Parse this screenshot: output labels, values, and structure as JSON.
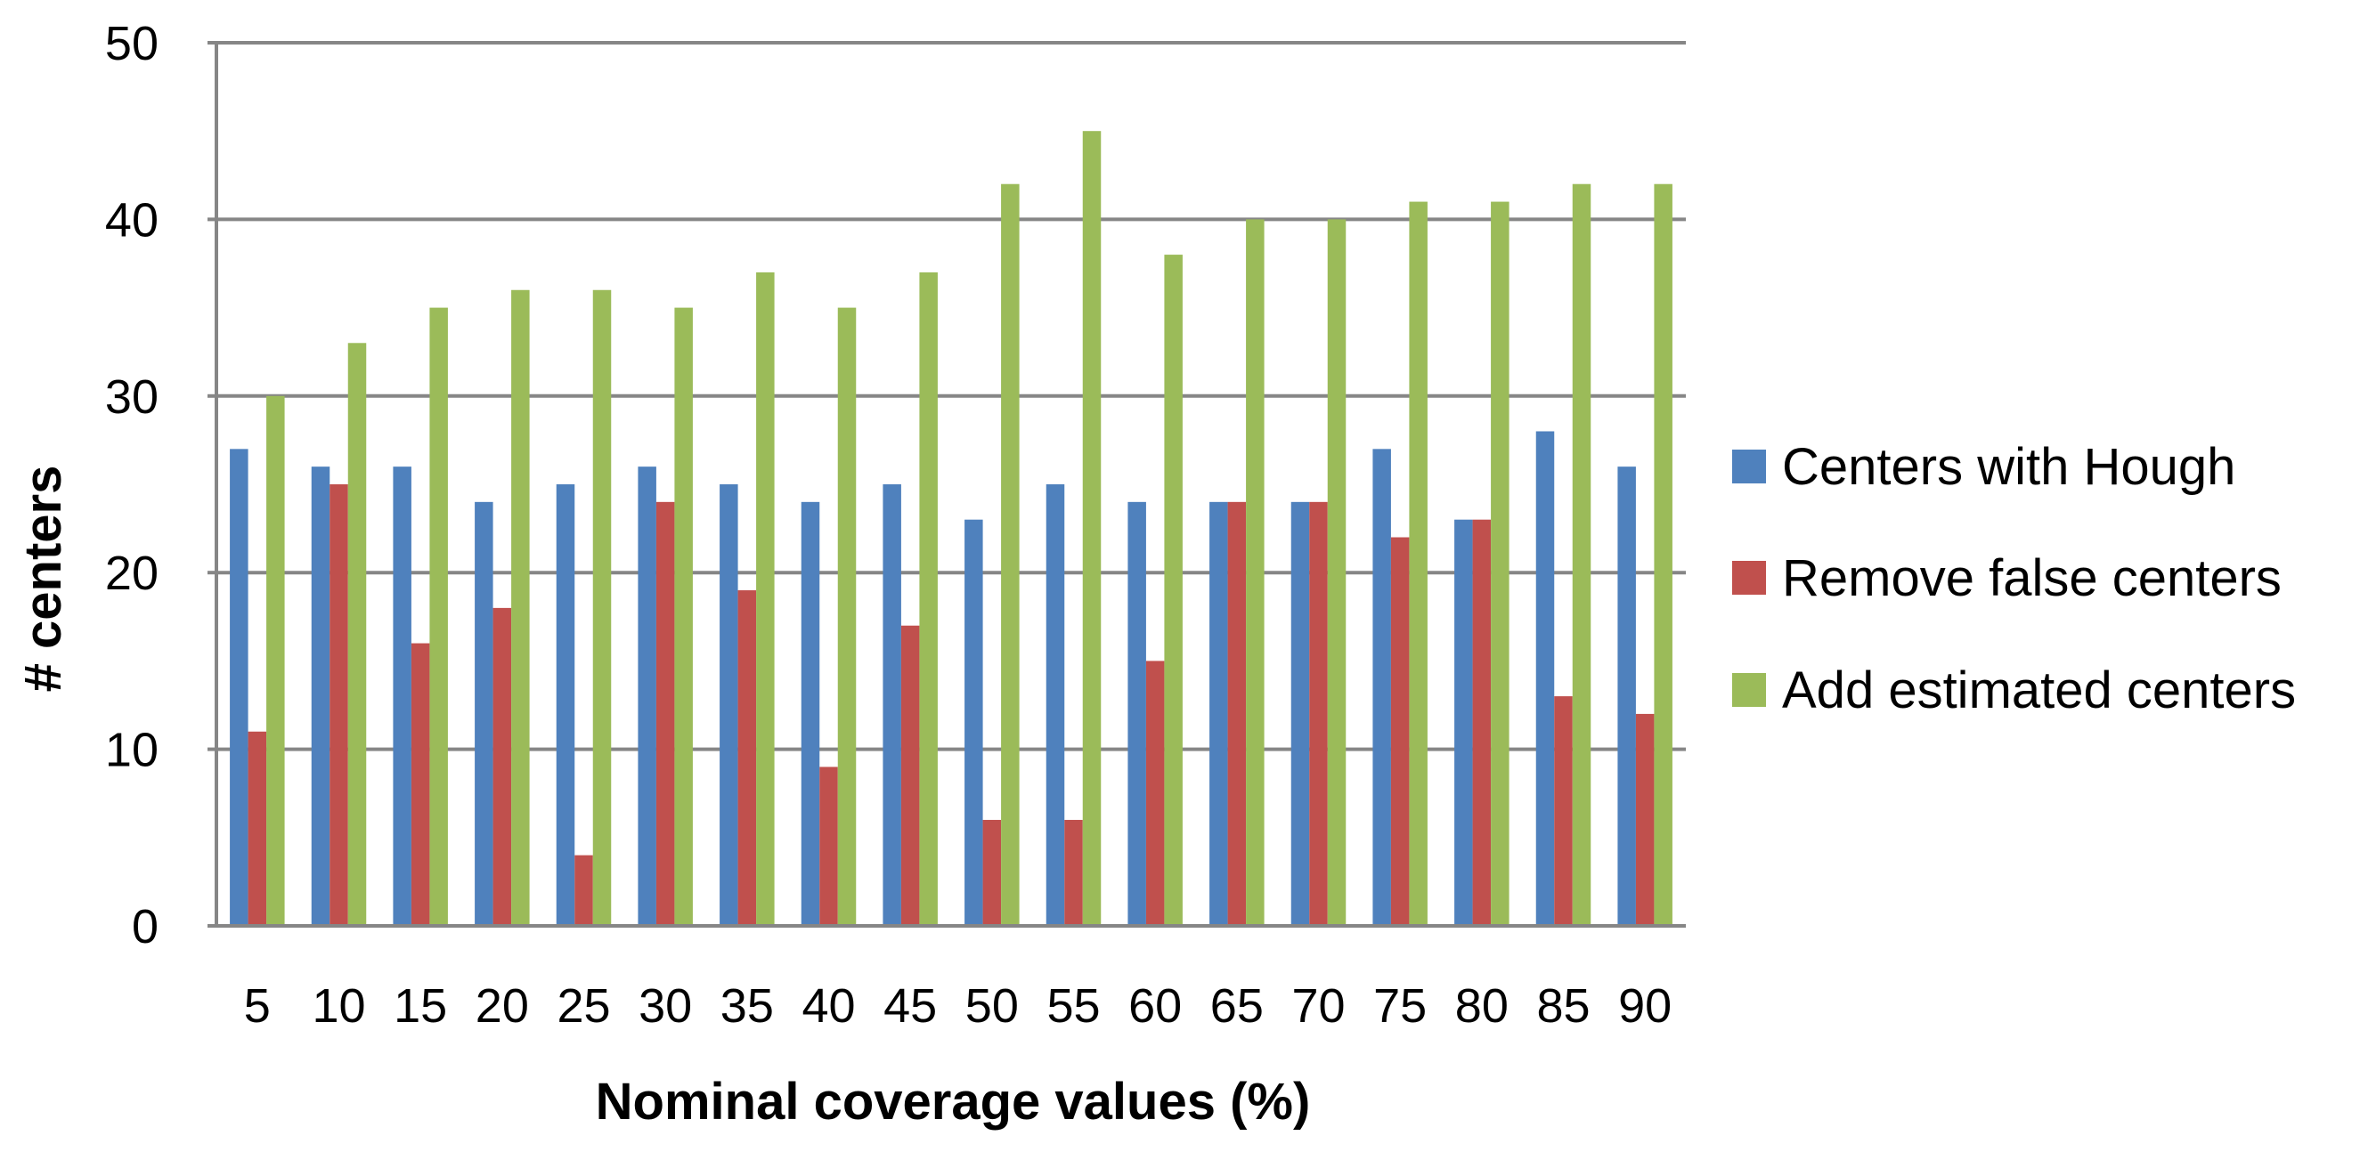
{
  "chart_data": {
    "type": "bar",
    "title": "",
    "xlabel": "Nominal coverage values (%)",
    "ylabel": "# centers",
    "ylim": [
      0,
      50
    ],
    "yticks": [
      0,
      10,
      20,
      30,
      40,
      50
    ],
    "grid": true,
    "legend_position": "right",
    "categories": [
      "5",
      "10",
      "15",
      "20",
      "25",
      "30",
      "35",
      "40",
      "45",
      "50",
      "55",
      "60",
      "65",
      "70",
      "75",
      "80",
      "85",
      "90"
    ],
    "series": [
      {
        "name": "Centers with Hough",
        "color": "#4F81BD",
        "values": [
          27,
          26,
          26,
          24,
          25,
          26,
          25,
          24,
          25,
          23,
          25,
          24,
          24,
          24,
          27,
          23,
          28,
          26
        ]
      },
      {
        "name": "Remove false centers",
        "color": "#C0504D",
        "values": [
          11,
          25,
          16,
          18,
          4,
          24,
          19,
          9,
          17,
          6,
          6,
          15,
          24,
          24,
          22,
          23,
          13,
          12
        ]
      },
      {
        "name": "Add estimated centers",
        "color": "#9BBB59",
        "values": [
          30,
          33,
          35,
          36,
          36,
          35,
          37,
          35,
          37,
          42,
          45,
          38,
          40,
          40,
          41,
          41,
          42,
          42
        ]
      }
    ]
  }
}
